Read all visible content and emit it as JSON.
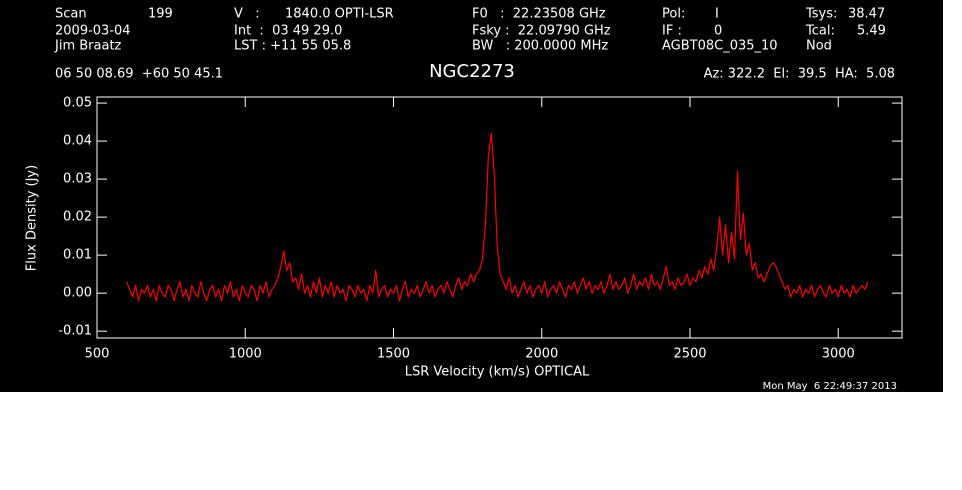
{
  "chart_data": {
    "type": "line",
    "title": "NGC2273",
    "header": [
      "Scan",
      "199",
      "V   :",
      "1840.0 OPTI-LSR",
      "F0   :  22.23508 GHz",
      "Pol:",
      "I",
      "Tsys:",
      "38.47",
      "2009-03-04",
      "Int  :  03 49 29.0",
      "Fsky :  22.09790 GHz",
      "IF :",
      "0",
      "Tcal:",
      "5.49",
      "Jim Braatz",
      "LST : +11 55 05.8",
      "BW   : 200.0000 MHz",
      "AGBT08C_035_10",
      "Nod",
      "06 50 08.69  +60 50 45.1",
      "Az: 322.2  El:  39.5  HA:  5.08"
    ],
    "timestamp": "Mon May  6 22:49:37 2013",
    "xlabel": "LSR Velocity (km/s) OPTICAL",
    "ylabel": "Flux Density (Jy)",
    "xlim": [
      500,
      3215
    ],
    "ylim": [
      -0.0118,
      0.0516
    ],
    "xticks": [
      500,
      1000,
      1500,
      2000,
      2500,
      3000
    ],
    "yticks": [
      -0.01,
      {
        "value": 0,
        "label": "0.00"
      },
      0.01,
      0.02,
      0.03,
      0.04,
      0.05
    ],
    "color": "#ff0000",
    "x": [
      600,
      610,
      620,
      630,
      640,
      650,
      660,
      670,
      680,
      690,
      700,
      710,
      720,
      730,
      740,
      750,
      760,
      770,
      780,
      790,
      800,
      810,
      820,
      830,
      840,
      850,
      860,
      870,
      880,
      890,
      900,
      910,
      920,
      930,
      940,
      950,
      960,
      970,
      980,
      990,
      1000,
      1010,
      1020,
      1030,
      1040,
      1050,
      1060,
      1070,
      1080,
      1090,
      1100,
      1110,
      1120,
      1130,
      1140,
      1150,
      1160,
      1170,
      1180,
      1190,
      1200,
      1210,
      1220,
      1230,
      1240,
      1250,
      1260,
      1270,
      1280,
      1290,
      1300,
      1310,
      1320,
      1330,
      1340,
      1350,
      1360,
      1370,
      1380,
      1390,
      1400,
      1410,
      1420,
      1430,
      1440,
      1450,
      1460,
      1470,
      1480,
      1490,
      1500,
      1510,
      1520,
      1530,
      1540,
      1550,
      1560,
      1570,
      1580,
      1590,
      1600,
      1610,
      1620,
      1630,
      1640,
      1650,
      1660,
      1670,
      1680,
      1690,
      1700,
      1710,
      1720,
      1730,
      1740,
      1750,
      1760,
      1770,
      1780,
      1790,
      1800,
      1810,
      1820,
      1830,
      1840,
      1850,
      1860,
      1870,
      1880,
      1890,
      1900,
      1910,
      1920,
      1930,
      1940,
      1950,
      1960,
      1970,
      1980,
      1990,
      2000,
      2010,
      2020,
      2030,
      2040,
      2050,
      2060,
      2070,
      2080,
      2090,
      2100,
      2110,
      2120,
      2130,
      2140,
      2150,
      2160,
      2170,
      2180,
      2190,
      2200,
      2210,
      2220,
      2230,
      2240,
      2250,
      2260,
      2270,
      2280,
      2290,
      2300,
      2310,
      2320,
      2330,
      2340,
      2350,
      2360,
      2370,
      2380,
      2390,
      2400,
      2410,
      2420,
      2430,
      2440,
      2450,
      2460,
      2470,
      2480,
      2490,
      2500,
      2510,
      2520,
      2530,
      2540,
      2550,
      2560,
      2570,
      2580,
      2590,
      2600,
      2610,
      2620,
      2630,
      2640,
      2650,
      2660,
      2670,
      2680,
      2690,
      2700,
      2710,
      2720,
      2730,
      2740,
      2750,
      2760,
      2770,
      2780,
      2790,
      2800,
      2810,
      2820,
      2830,
      2840,
      2850,
      2860,
      2870,
      2880,
      2890,
      2900,
      2910,
      2920,
      2930,
      2940,
      2950,
      2960,
      2970,
      2980,
      2990,
      3000,
      3010,
      3020,
      3030,
      3040,
      3050,
      3060,
      3070,
      3080,
      3090,
      3100
    ],
    "values": [
      0.003,
      0.001,
      -0.001,
      0.002,
      -0.002,
      0.001,
      0.0,
      0.002,
      -0.001,
      0.001,
      -0.002,
      0.002,
      0.0,
      -0.001,
      0.002,
      0.001,
      -0.002,
      0.001,
      0.003,
      -0.001,
      0.001,
      -0.002,
      0.002,
      0.0,
      -0.001,
      0.003,
      0.0,
      -0.002,
      0.001,
      0.002,
      -0.001,
      0.001,
      -0.002,
      0.002,
      0.0,
      0.003,
      -0.001,
      0.001,
      -0.002,
      0.002,
      0.0,
      -0.001,
      0.002,
      0.001,
      -0.002,
      0.002,
      0.0,
      0.003,
      -0.001,
      0.001,
      0.002,
      0.004,
      0.007,
      0.011,
      0.006,
      0.008,
      0.003,
      0.004,
      0.001,
      0.005,
      0.0,
      0.002,
      -0.001,
      0.003,
      0.0,
      0.004,
      -0.001,
      0.002,
      0.0,
      0.003,
      -0.001,
      0.002,
      0.0,
      0.001,
      -0.002,
      0.002,
      0.001,
      -0.001,
      0.002,
      0.0,
      0.001,
      -0.002,
      0.002,
      0.0,
      0.006,
      -0.001,
      0.001,
      0.002,
      -0.001,
      0.001,
      0.0,
      0.002,
      -0.002,
      0.001,
      0.003,
      -0.001,
      0.001,
      0.0,
      0.002,
      -0.001,
      0.001,
      0.003,
      0.0,
      0.002,
      -0.001,
      0.001,
      0.002,
      0.0,
      0.003,
      0.001,
      -0.001,
      0.002,
      0.004,
      0.001,
      0.003,
      0.002,
      0.005,
      0.003,
      0.005,
      0.006,
      0.009,
      0.018,
      0.036,
      0.042,
      0.031,
      0.012,
      0.005,
      0.003,
      0.001,
      0.004,
      0.0,
      0.002,
      -0.001,
      0.001,
      0.003,
      0.0,
      0.002,
      -0.001,
      0.001,
      0.002,
      0.0,
      0.003,
      -0.001,
      0.001,
      0.002,
      0.0,
      0.003,
      0.001,
      -0.001,
      0.002,
      0.001,
      0.003,
      0.0,
      0.002,
      0.004,
      0.001,
      0.003,
      0.0,
      0.002,
      0.001,
      0.003,
      0.0,
      0.002,
      0.005,
      0.001,
      0.003,
      0.001,
      0.002,
      0.004,
      0.0,
      0.002,
      0.005,
      0.001,
      0.003,
      0.002,
      0.004,
      0.001,
      0.005,
      0.002,
      0.003,
      0.001,
      0.004,
      0.007,
      0.002,
      0.003,
      0.001,
      0.004,
      0.002,
      0.003,
      0.005,
      0.002,
      0.004,
      0.003,
      0.006,
      0.004,
      0.007,
      0.005,
      0.009,
      0.006,
      0.012,
      0.02,
      0.01,
      0.018,
      0.008,
      0.016,
      0.009,
      0.032,
      0.014,
      0.021,
      0.01,
      0.013,
      0.006,
      0.008,
      0.004,
      0.005,
      0.003,
      0.005,
      0.007,
      0.008,
      0.007,
      0.005,
      0.003,
      0.001,
      0.002,
      -0.001,
      0.001,
      0.0,
      0.002,
      -0.001,
      0.001,
      0.0,
      0.002,
      -0.001,
      0.001,
      0.002,
      0.0,
      -0.001,
      0.002,
      0.0,
      0.001,
      -0.001,
      0.002,
      0.0,
      0.001,
      -0.001,
      0.002,
      0.0,
      0.001,
      0.002,
      0.001,
      0.003
    ]
  }
}
